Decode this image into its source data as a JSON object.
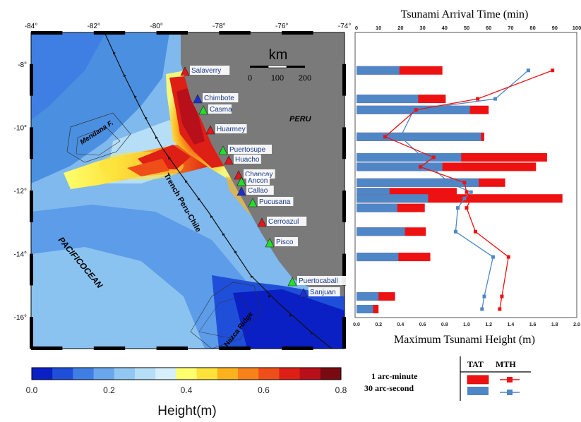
{
  "map": {
    "lon_ticks": [
      "-84°",
      "-82°",
      "-80°",
      "-78°",
      "-76°",
      "-74°"
    ],
    "lat_ticks": [
      "-8°",
      "-10°",
      "-12°",
      "-14°",
      "-16°"
    ],
    "scale_unit": "km",
    "scale_ticks": [
      "0",
      "100",
      "200"
    ],
    "labels": {
      "peru": "PERU",
      "mendana": "Mendana F.",
      "trench": "Trench Peru-Chile",
      "ocean_1": "PACIFIC",
      "ocean_2": "OCEAN",
      "nazca": "Nazca Ridge"
    },
    "stations": [
      {
        "name": "Salaverry",
        "color": "#e8141c"
      },
      {
        "name": "Chimbote",
        "color": "#1a2fd6"
      },
      {
        "name": "Casma",
        "color": "#22e02a"
      },
      {
        "name": "Huarmey",
        "color": "#e8141c"
      },
      {
        "name": "Puertosupe",
        "color": "#22e02a"
      },
      {
        "name": "Huacho",
        "color": "#e8141c"
      },
      {
        "name": "Chancay",
        "color": "#e8141c"
      },
      {
        "name": "Ancon",
        "color": "#22e02a"
      },
      {
        "name": "Callao",
        "color": "#1a2fd6"
      },
      {
        "name": "Pucusana",
        "color": "#22e02a"
      },
      {
        "name": "Cerroazul",
        "color": "#e8141c"
      },
      {
        "name": "Pisco",
        "color": "#22e02a"
      },
      {
        "name": "Puertocaball",
        "color": "#22e02a"
      },
      {
        "name": "Sanjuan",
        "color": "#1a2fd6"
      }
    ],
    "colorbar": {
      "title": "Height(m)",
      "ticks": [
        "0.0",
        "0.2",
        "0.4",
        "0.6",
        "0.8"
      ],
      "colors": [
        "#0a1fc4",
        "#1f4fd8",
        "#3f7fe4",
        "#6aa6ec",
        "#92c7f2",
        "#b6def6",
        "#d6effa",
        "#ffff6e",
        "#fde23c",
        "#fbb21e",
        "#f7821a",
        "#f04e18",
        "#de1f16",
        "#b8101a",
        "#7a0a12"
      ]
    }
  },
  "chart_data": {
    "type": "bar",
    "top_title": "Tsunami Arrival Time (min)",
    "bottom_title": "Maximum Tsunami Height (m)",
    "top_ticks": [
      "0",
      "10",
      "20",
      "30",
      "40",
      "50",
      "60",
      "70",
      "80",
      "90",
      "100"
    ],
    "bottom_ticks": [
      "0.0",
      "0.2",
      "0.4",
      "0.6",
      "0.8",
      "1.0",
      "1.2",
      "1.4",
      "1.6",
      "1.8",
      "2.0"
    ],
    "height_range": [
      0,
      2.0
    ],
    "time_range": [
      0,
      100
    ],
    "latitude_range": [
      -7,
      -17
    ],
    "rows": [
      {
        "lat": -8.2,
        "mth_1min": 0.78,
        "mth_30s": 0.39,
        "tat_1min": 89,
        "tat_30s": 78
      },
      {
        "lat": -9.1,
        "mth_1min": 0.81,
        "mth_30s": 0.56,
        "tat_1min": 55,
        "tat_30s": 63
      },
      {
        "lat": -9.45,
        "mth_1min": 1.2,
        "mth_30s": 1.03,
        "tat_1min": 27,
        "tat_30s": 26
      },
      {
        "lat": -10.3,
        "mth_1min": 1.16,
        "mth_30s": 1.13,
        "tat_1min": 13,
        "tat_30s": 20
      },
      {
        "lat": -10.95,
        "mth_1min": 1.73,
        "mth_30s": 0.95,
        "tat_1min": 35,
        "tat_30s": 30
      },
      {
        "lat": -11.25,
        "mth_1min": 1.63,
        "mth_30s": 0.78,
        "tat_1min": 29,
        "tat_30s": 34
      },
      {
        "lat": -11.75,
        "mth_1min": 1.35,
        "mth_30s": 1.11,
        "tat_1min": 49,
        "tat_30s": 42
      },
      {
        "lat": -12.05,
        "mth_1min": 0.91,
        "mth_30s": 0.3,
        "tat_1min": 50,
        "tat_30s": 52
      },
      {
        "lat": -12.25,
        "mth_1min": 1.87,
        "mth_30s": 0.65,
        "tat_1min": 52,
        "tat_30s": 49
      },
      {
        "lat": -12.55,
        "mth_1min": 0.62,
        "mth_30s": 0.37,
        "tat_1min": 50,
        "tat_30s": 46
      },
      {
        "lat": -13.3,
        "mth_1min": 0.63,
        "mth_30s": 0.44,
        "tat_1min": 54,
        "tat_30s": 45
      },
      {
        "lat": -14.1,
        "mth_1min": 0.67,
        "mth_30s": 0.38,
        "tat_1min": 69,
        "tat_30s": 62
      },
      {
        "lat": -15.35,
        "mth_1min": 0.35,
        "mth_30s": 0.2,
        "tat_1min": 66,
        "tat_30s": 58
      },
      {
        "lat": -15.75,
        "mth_1min": 0.2,
        "mth_30s": 0.15,
        "tat_1min": 65,
        "tat_30s": 57
      }
    ],
    "colors": {
      "one_arc_minute": "#ee1111",
      "thirty_arc_second": "#4f86c6"
    },
    "legend": {
      "tat": "TAT",
      "mth": "MTH",
      "one_arc_minute": "1 arc-minute",
      "thirty_arc_second": "30 arc-second"
    }
  }
}
